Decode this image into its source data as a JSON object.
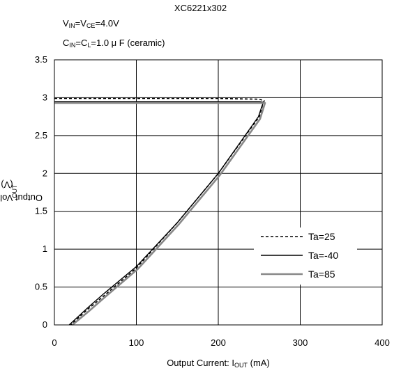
{
  "title": "XC6221x302",
  "conditions": {
    "line1": {
      "a": "V",
      "a_sub": "IN",
      "b": "=V",
      "b_sub": "CE",
      "c": "=4.0V"
    },
    "line2": {
      "a": "C",
      "a_sub": "IN",
      "b": "=C",
      "b_sub": "L",
      "c": "=1.0 μ F (ceramic)"
    }
  },
  "chart_data": {
    "type": "line",
    "title": "XC6221x302",
    "xlabel": {
      "main": "Output Current: I",
      "sub": "OUT",
      "unit": " (mA)"
    },
    "ylabel": {
      "main": "Output Voltage: V",
      "sub": "OUT",
      "unit": " (V)"
    },
    "xlim": [
      0,
      400
    ],
    "ylim": [
      0,
      3.5
    ],
    "xticks": [
      0,
      100,
      200,
      300,
      400
    ],
    "yticks": [
      0,
      0.5,
      1,
      1.5,
      2,
      2.5,
      3,
      3.5
    ],
    "xtick_labels": [
      "0",
      "100",
      "200",
      "300",
      "400"
    ],
    "ytick_labels": [
      "0",
      "0.5",
      "1",
      "1.5",
      "2",
      "2.5",
      "3",
      "3.5"
    ],
    "grid": true,
    "legend_position": "bottom-right",
    "series": [
      {
        "name": "Ta=25",
        "style": "dashed",
        "color": "#000000",
        "x": [
          0,
          100,
          200,
          250,
          256,
          254,
          250,
          200,
          150,
          100,
          60,
          40,
          20
        ],
        "y": [
          2.99,
          2.99,
          2.99,
          2.98,
          2.96,
          2.9,
          2.75,
          2.0,
          1.35,
          0.75,
          0.38,
          0.2,
          0.0
        ]
      },
      {
        "name": "Ta=-40",
        "style": "solid",
        "color": "#000000",
        "x": [
          0,
          100,
          200,
          250,
          255,
          253,
          249,
          200,
          150,
          100,
          60,
          40,
          18
        ],
        "y": [
          2.95,
          2.95,
          2.95,
          2.95,
          2.94,
          2.88,
          2.75,
          2.0,
          1.35,
          0.77,
          0.41,
          0.22,
          0.0
        ]
      },
      {
        "name": "Ta=85",
        "style": "thick-gray",
        "color": "#888888",
        "x": [
          0,
          100,
          200,
          250,
          257,
          255,
          251,
          202,
          152,
          102,
          62,
          42,
          22
        ],
        "y": [
          2.93,
          2.93,
          2.93,
          2.93,
          2.93,
          2.86,
          2.72,
          1.98,
          1.33,
          0.74,
          0.37,
          0.18,
          0.0
        ]
      }
    ]
  }
}
